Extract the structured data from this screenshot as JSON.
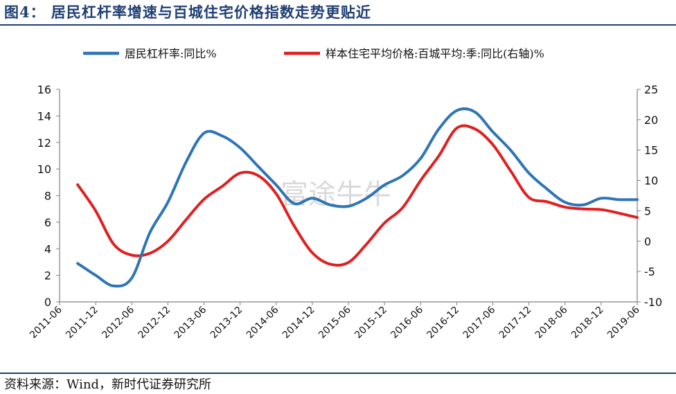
{
  "header": {
    "title": "图4：  居民杠杆率增速与百城住宅价格指数走势更贴近"
  },
  "footer": {
    "source": "资料来源：Wind，新时代证券研究所"
  },
  "watermark": {
    "text": "富途牛牛"
  },
  "chart_data": {
    "type": "line",
    "x_categories": [
      "2011-06",
      "2011-12",
      "2012-06",
      "2012-12",
      "2013-06",
      "2013-12",
      "2014-06",
      "2014-12",
      "2015-06",
      "2015-12",
      "2016-06",
      "2016-12",
      "2017-06",
      "2017-12",
      "2018-06",
      "2018-12",
      "2019-06"
    ],
    "y_left": {
      "min": 0,
      "max": 16,
      "ticks": [
        0,
        2,
        4,
        6,
        8,
        10,
        12,
        14,
        16
      ]
    },
    "y_right": {
      "min": -10,
      "max": 25,
      "ticks": [
        -10,
        -5,
        0,
        5,
        10,
        15,
        20,
        25
      ]
    },
    "legend_position": "top",
    "grid": false,
    "series": [
      {
        "name": "居民杠杆率:同比%",
        "axis": "left",
        "color": "#2e75b6",
        "points": [
          [
            "2011-09",
            2.9
          ],
          [
            "2011-12",
            2.0
          ],
          [
            "2012-03",
            1.2
          ],
          [
            "2012-06",
            1.8
          ],
          [
            "2012-09",
            5.2
          ],
          [
            "2012-12",
            7.5
          ],
          [
            "2013-03",
            10.5
          ],
          [
            "2013-06",
            12.7
          ],
          [
            "2013-09",
            12.5
          ],
          [
            "2013-12",
            11.6
          ],
          [
            "2014-03",
            10.2
          ],
          [
            "2014-06",
            8.8
          ],
          [
            "2014-09",
            7.4
          ],
          [
            "2014-12",
            7.8
          ],
          [
            "2015-03",
            7.3
          ],
          [
            "2015-06",
            7.2
          ],
          [
            "2015-09",
            7.8
          ],
          [
            "2015-12",
            8.8
          ],
          [
            "2016-03",
            9.5
          ],
          [
            "2016-06",
            10.8
          ],
          [
            "2016-09",
            13.0
          ],
          [
            "2016-12",
            14.4
          ],
          [
            "2017-03",
            14.3
          ],
          [
            "2017-06",
            12.8
          ],
          [
            "2017-09",
            11.4
          ],
          [
            "2017-12",
            9.7
          ],
          [
            "2018-03",
            8.5
          ],
          [
            "2018-06",
            7.5
          ],
          [
            "2018-09",
            7.3
          ],
          [
            "2018-12",
            7.8
          ],
          [
            "2019-03",
            7.7
          ],
          [
            "2019-06",
            7.7
          ]
        ]
      },
      {
        "name": "样本住宅平均价格:百城平均:季:同比(右轴)%",
        "axis": "right",
        "color": "#e02020",
        "points": [
          [
            "2011-09",
            9.3
          ],
          [
            "2011-12",
            5.0
          ],
          [
            "2012-03",
            -0.5
          ],
          [
            "2012-06",
            -2.3
          ],
          [
            "2012-09",
            -2.0
          ],
          [
            "2012-12",
            0.0
          ],
          [
            "2013-03",
            3.5
          ],
          [
            "2013-06",
            6.9
          ],
          [
            "2013-09",
            9.0
          ],
          [
            "2013-12",
            11.2
          ],
          [
            "2014-03",
            10.8
          ],
          [
            "2014-06",
            7.8
          ],
          [
            "2014-09",
            2.5
          ],
          [
            "2014-12",
            -1.9
          ],
          [
            "2015-03",
            -3.8
          ],
          [
            "2015-06",
            -3.5
          ],
          [
            "2015-09",
            -0.5
          ],
          [
            "2015-12",
            3.0
          ],
          [
            "2016-03",
            5.5
          ],
          [
            "2016-06",
            10.0
          ],
          [
            "2016-09",
            14.0
          ],
          [
            "2016-12",
            18.6
          ],
          [
            "2017-03",
            18.5
          ],
          [
            "2017-06",
            15.9
          ],
          [
            "2017-09",
            11.5
          ],
          [
            "2017-12",
            7.2
          ],
          [
            "2018-03",
            6.5
          ],
          [
            "2018-06",
            5.6
          ],
          [
            "2018-09",
            5.3
          ],
          [
            "2018-12",
            5.2
          ],
          [
            "2019-03",
            4.6
          ],
          [
            "2019-06",
            3.9
          ]
        ]
      }
    ]
  }
}
